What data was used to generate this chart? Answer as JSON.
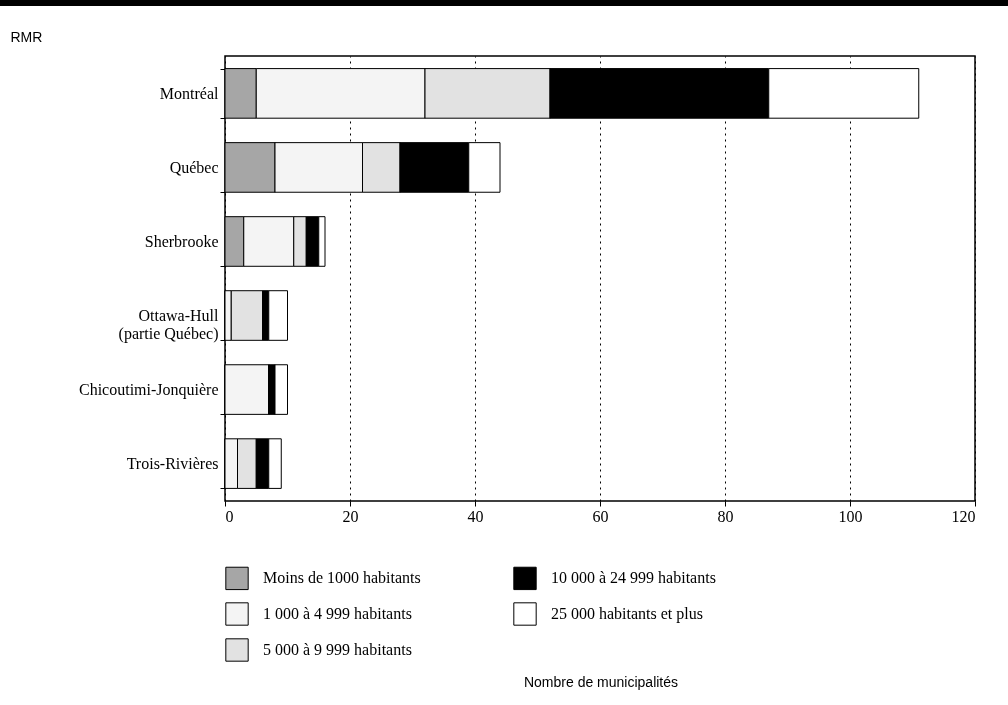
{
  "chart_data": {
    "type": "bar",
    "orientation": "horizontal",
    "stacked": true,
    "ylabel": "RMR",
    "annotations": [
      "Nombre de municipalités"
    ],
    "categories": [
      "Montréal",
      "Québec",
      "Sherbrooke",
      "Ottawa-Hull\n(partie Québec)",
      "Chicoutimi-Jonquière",
      "Trois-Rivières"
    ],
    "series": [
      {
        "name": "Moins de 1000 habitants",
        "color": "#a6a6a6",
        "values": [
          5,
          8,
          3,
          0,
          0,
          0
        ]
      },
      {
        "name": "1 000 à 4 999 habitants",
        "color": "#f4f4f4",
        "values": [
          27,
          14,
          8,
          1,
          7,
          2
        ]
      },
      {
        "name": "5 000 à 9 999 habitants",
        "color": "#e2e2e2",
        "values": [
          20,
          6,
          2,
          5,
          0,
          3
        ]
      },
      {
        "name": "10 000 à 24 999 habitants",
        "color": "#000000",
        "values": [
          35,
          11,
          2,
          1,
          1,
          2
        ]
      },
      {
        "name": "25 000 habitants et plus",
        "color": "#ffffff",
        "values": [
          24,
          5,
          1,
          3,
          2,
          2
        ]
      }
    ],
    "xlim": [
      0,
      120
    ],
    "xticks": [
      0,
      20,
      40,
      60,
      80,
      100,
      120
    ],
    "grid": "x",
    "legend": "bottom"
  }
}
